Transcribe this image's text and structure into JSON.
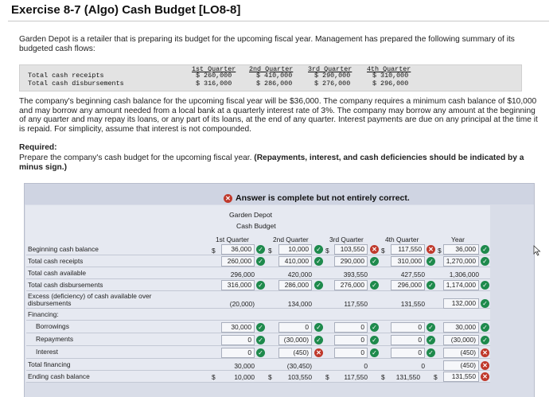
{
  "header": {
    "title": "Exercise 8-7 (Algo) Cash Budget [LO8-8]"
  },
  "intro": "Garden Depot is a retailer that is preparing its budget for the upcoming fiscal year. Management has prepared the following summary of its budgeted cash flows:",
  "summary": {
    "columns": [
      "1st Quarter",
      "2nd Quarter",
      "3rd Quarter",
      "4th Quarter"
    ],
    "rows": [
      {
        "label": "Total cash receipts",
        "values": [
          "$ 260,000",
          "$ 410,000",
          "$ 290,000",
          "$ 310,000"
        ]
      },
      {
        "label": "Total cash disbursements",
        "values": [
          "$ 316,000",
          "$ 286,000",
          "$ 276,000",
          "$ 296,000"
        ]
      }
    ]
  },
  "policy": "The company's beginning cash balance for the upcoming fiscal year will be $36,000. The company requires a minimum cash balance of $10,000 and may borrow any amount needed from a local bank at a quarterly interest rate of 3%. The company may borrow any amount at the beginning of any quarter and may repay its loans, or any part of its loans, at the end of any quarter. Interest payments are due on any principal at the time it is repaid. For simplicity, assume that interest is not compounded.",
  "required": {
    "title": "Required:",
    "text_plain": "Prepare the company's cash budget for the upcoming fiscal year. ",
    "text_bold": "(Repayments, interest, and cash deficiencies should be indicated by a minus sign.)"
  },
  "answer": {
    "banner": "Answer is complete but not entirely correct.",
    "company": "Garden Depot",
    "budget_name": "Cash Budget",
    "columns": [
      "1st Quarter",
      "2nd Quarter",
      "3rd Quarter",
      "4th Quarter",
      "Year"
    ],
    "rows": {
      "beginning": {
        "label": "Beginning cash balance",
        "values": [
          "36,000",
          "10,000",
          "103,550",
          "117,550",
          "36,000"
        ]
      },
      "receipts": {
        "label": "Total cash receipts",
        "values": [
          "260,000",
          "410,000",
          "290,000",
          "310,000",
          "1,270,000"
        ]
      },
      "available": {
        "label": "Total cash available",
        "values": [
          "296,000",
          "420,000",
          "393,550",
          "427,550",
          "1,306,000"
        ]
      },
      "disbursements": {
        "label": "Total cash disbursements",
        "values": [
          "316,000",
          "286,000",
          "276,000",
          "296,000",
          "1,174,000"
        ]
      },
      "excess": {
        "label_line1": "Excess (deficiency) of cash available over",
        "label_line2": "disbursements",
        "values": [
          "(20,000)",
          "134,000",
          "117,550",
          "131,550",
          "132,000"
        ]
      },
      "financing": {
        "label": "Financing:"
      },
      "borrowings": {
        "label": "Borrowings",
        "values": [
          "30,000",
          "0",
          "0",
          "0",
          "30,000"
        ]
      },
      "repayments": {
        "label": "Repayments",
        "values": [
          "0",
          "(30,000)",
          "0",
          "0",
          "(30,000)"
        ]
      },
      "interest": {
        "label": "Interest",
        "values": [
          "0",
          "(450)",
          "0",
          "0",
          "(450)"
        ]
      },
      "total_financing": {
        "label": "Total financing",
        "values": [
          "30,000",
          "(30,450)",
          "0",
          "0",
          "(450)"
        ]
      },
      "ending": {
        "label": "Ending cash balance",
        "values": [
          "10,000",
          "103,550",
          "117,550",
          "131,550",
          "131,550"
        ]
      }
    },
    "currency": "$"
  }
}
